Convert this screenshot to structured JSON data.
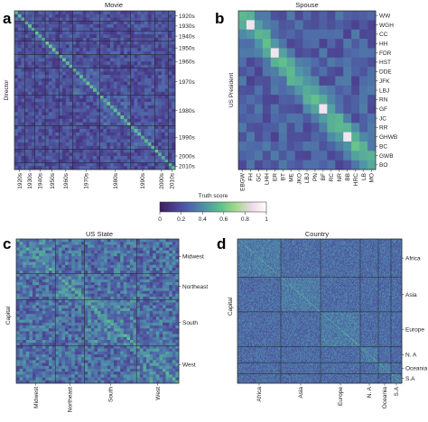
{
  "colorbar": {
    "label": "Truth score",
    "ticks": [
      "0",
      "0.2",
      "0.4",
      "0.6",
      "0.8",
      "1"
    ],
    "range": [
      0,
      1
    ],
    "colormap": "cubehelix-like (dark purple → green → white)",
    "stops": [
      "#3a1f5d",
      "#4b3f8f",
      "#4f68a8",
      "#4f95a6",
      "#5fbf8c",
      "#a2d98a",
      "#ead8e8",
      "#ffffff"
    ]
  },
  "chart_data": [
    {
      "type": "heatmap",
      "panel": "a",
      "title": "Movie",
      "ylabel": "Director",
      "xlabel": "",
      "row_labels": [
        "1920s",
        "1930s",
        "1940s",
        "1950s",
        "1960s",
        "1970s",
        "1980s",
        "1990s",
        "2000s",
        "2010s"
      ],
      "col_labels": [
        "1920s",
        "1930s",
        "1940s",
        "1950s",
        "1960s",
        "1970s",
        "1980s",
        "1990s",
        "2000s",
        "2010s"
      ],
      "group_sizes": [
        3,
        3,
        3,
        4,
        4,
        8,
        9,
        7,
        4,
        2
      ],
      "diagonal_value": 0.55,
      "background_range": [
        0.1,
        0.3
      ]
    },
    {
      "type": "heatmap",
      "panel": "b",
      "title": "Spouse",
      "ylabel": "US President",
      "xlabel": "",
      "row_labels": [
        "WW",
        "WGH",
        "CC",
        "HH",
        "FDR",
        "HST",
        "DDE",
        "JFK",
        "LBJ",
        "RN",
        "GF",
        "JC",
        "RR",
        "GHWB",
        "BC",
        "GWB",
        "BO"
      ],
      "col_labels": [
        "EBGW",
        "FH",
        "GC",
        "LHH",
        "ER",
        "BT",
        "ME",
        "JKO",
        "LBJ",
        "PN",
        "BF",
        "RC",
        "NR",
        "BB",
        "HRC",
        "LB",
        "MO"
      ],
      "diagonal_value": 0.55,
      "highlight_values": [
        {
          "row": "WGH",
          "col": "FH",
          "value": 0.9
        },
        {
          "row": "FDR",
          "col": "ER",
          "value": 0.9
        },
        {
          "row": "GF",
          "col": "BF",
          "value": 0.9
        },
        {
          "row": "GHWB",
          "col": "BB",
          "value": 0.9
        }
      ],
      "background_range": [
        0.15,
        0.35
      ]
    },
    {
      "type": "heatmap",
      "panel": "c",
      "title": "US State",
      "ylabel": "Capital",
      "xlabel": "",
      "row_labels": [
        "Midwest",
        "Northeast",
        "South",
        "West"
      ],
      "col_labels": [
        "Midwest",
        "Northeast",
        "South",
        "West"
      ],
      "group_sizes": [
        12,
        9,
        16,
        13
      ],
      "diagonal_value": 0.5,
      "background_range": [
        0.15,
        0.45
      ]
    },
    {
      "type": "heatmap",
      "panel": "d",
      "title": "Country",
      "ylabel": "Capital",
      "xlabel": "",
      "row_labels": [
        "Africa",
        "Asia",
        "Europe",
        "N. A",
        "Oceania",
        "S.A"
      ],
      "col_labels": [
        "Africa",
        "Asia",
        "Europe",
        "N. A",
        "Oceania",
        "S.A"
      ],
      "group_sizes": [
        48,
        44,
        44,
        20,
        14,
        12
      ],
      "diagonal_value": 0.5,
      "background_range": [
        0.2,
        0.4
      ]
    }
  ]
}
